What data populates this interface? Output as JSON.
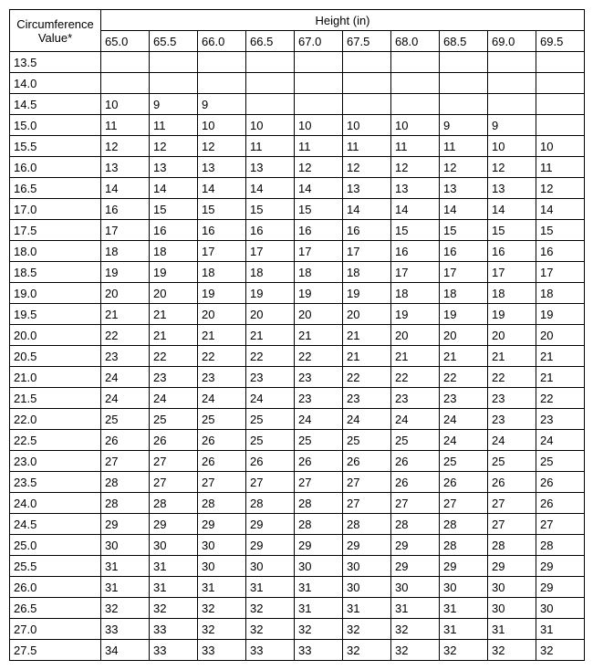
{
  "table": {
    "type": "table",
    "corner_label_line1": "Circumference",
    "corner_label_line2": "Value*",
    "height_header": "Height (in)",
    "height_columns": [
      "65.0",
      "65.5",
      "66.0",
      "66.5",
      "67.0",
      "67.5",
      "68.0",
      "68.5",
      "69.0",
      "69.5"
    ],
    "rows": [
      {
        "circ": "13.5",
        "vals": [
          "",
          "",
          "",
          "",
          "",
          "",
          "",
          "",
          "",
          ""
        ]
      },
      {
        "circ": "14.0",
        "vals": [
          "",
          "",
          "",
          "",
          "",
          "",
          "",
          "",
          "",
          ""
        ]
      },
      {
        "circ": "14.5",
        "vals": [
          "10",
          "9",
          "9",
          "",
          "",
          "",
          "",
          "",
          "",
          ""
        ]
      },
      {
        "circ": "15.0",
        "vals": [
          "11",
          "11",
          "10",
          "10",
          "10",
          "10",
          "10",
          "9",
          "9",
          ""
        ]
      },
      {
        "circ": "15.5",
        "vals": [
          "12",
          "12",
          "12",
          "11",
          "11",
          "11",
          "11",
          "11",
          "10",
          "10"
        ]
      },
      {
        "circ": "16.0",
        "vals": [
          "13",
          "13",
          "13",
          "13",
          "12",
          "12",
          "12",
          "12",
          "12",
          "11"
        ]
      },
      {
        "circ": "16.5",
        "vals": [
          "14",
          "14",
          "14",
          "14",
          "14",
          "13",
          "13",
          "13",
          "13",
          "12"
        ]
      },
      {
        "circ": "17.0",
        "vals": [
          "16",
          "15",
          "15",
          "15",
          "15",
          "14",
          "14",
          "14",
          "14",
          "14"
        ]
      },
      {
        "circ": "17.5",
        "vals": [
          "17",
          "16",
          "16",
          "16",
          "16",
          "16",
          "15",
          "15",
          "15",
          "15"
        ]
      },
      {
        "circ": "18.0",
        "vals": [
          "18",
          "18",
          "17",
          "17",
          "17",
          "17",
          "16",
          "16",
          "16",
          "16"
        ]
      },
      {
        "circ": "18.5",
        "vals": [
          "19",
          "19",
          "18",
          "18",
          "18",
          "18",
          "17",
          "17",
          "17",
          "17"
        ]
      },
      {
        "circ": "19.0",
        "vals": [
          "20",
          "20",
          "19",
          "19",
          "19",
          "19",
          "18",
          "18",
          "18",
          "18"
        ]
      },
      {
        "circ": "19.5",
        "vals": [
          "21",
          "21",
          "20",
          "20",
          "20",
          "20",
          "19",
          "19",
          "19",
          "19"
        ]
      },
      {
        "circ": "20.0",
        "vals": [
          "22",
          "21",
          "21",
          "21",
          "21",
          "21",
          "20",
          "20",
          "20",
          "20"
        ]
      },
      {
        "circ": "20.5",
        "vals": [
          "23",
          "22",
          "22",
          "22",
          "22",
          "21",
          "21",
          "21",
          "21",
          "21"
        ]
      },
      {
        "circ": "21.0",
        "vals": [
          "24",
          "23",
          "23",
          "23",
          "23",
          "22",
          "22",
          "22",
          "22",
          "21"
        ]
      },
      {
        "circ": "21.5",
        "vals": [
          "24",
          "24",
          "24",
          "24",
          "23",
          "23",
          "23",
          "23",
          "23",
          "22"
        ]
      },
      {
        "circ": "22.0",
        "vals": [
          "25",
          "25",
          "25",
          "25",
          "24",
          "24",
          "24",
          "24",
          "23",
          "23"
        ]
      },
      {
        "circ": "22.5",
        "vals": [
          "26",
          "26",
          "26",
          "25",
          "25",
          "25",
          "25",
          "24",
          "24",
          "24"
        ]
      },
      {
        "circ": "23.0",
        "vals": [
          "27",
          "27",
          "26",
          "26",
          "26",
          "26",
          "26",
          "25",
          "25",
          "25"
        ]
      },
      {
        "circ": "23.5",
        "vals": [
          "28",
          "27",
          "27",
          "27",
          "27",
          "27",
          "26",
          "26",
          "26",
          "26"
        ]
      },
      {
        "circ": "24.0",
        "vals": [
          "28",
          "28",
          "28",
          "28",
          "28",
          "27",
          "27",
          "27",
          "27",
          "26"
        ]
      },
      {
        "circ": "24.5",
        "vals": [
          "29",
          "29",
          "29",
          "29",
          "28",
          "28",
          "28",
          "28",
          "27",
          "27"
        ]
      },
      {
        "circ": "25.0",
        "vals": [
          "30",
          "30",
          "30",
          "29",
          "29",
          "29",
          "29",
          "28",
          "28",
          "28"
        ]
      },
      {
        "circ": "25.5",
        "vals": [
          "31",
          "31",
          "30",
          "30",
          "30",
          "30",
          "29",
          "29",
          "29",
          "29"
        ]
      },
      {
        "circ": "26.0",
        "vals": [
          "31",
          "31",
          "31",
          "31",
          "31",
          "30",
          "30",
          "30",
          "30",
          "29"
        ]
      },
      {
        "circ": "26.5",
        "vals": [
          "32",
          "32",
          "32",
          "32",
          "31",
          "31",
          "31",
          "31",
          "30",
          "30"
        ]
      },
      {
        "circ": "27.0",
        "vals": [
          "33",
          "33",
          "32",
          "32",
          "32",
          "32",
          "32",
          "31",
          "31",
          "31"
        ]
      },
      {
        "circ": "27.5",
        "vals": [
          "34",
          "33",
          "33",
          "33",
          "33",
          "32",
          "32",
          "32",
          "32",
          "32"
        ]
      }
    ],
    "border_color": "#000000",
    "background_color": "#ffffff",
    "font_size": 13
  }
}
